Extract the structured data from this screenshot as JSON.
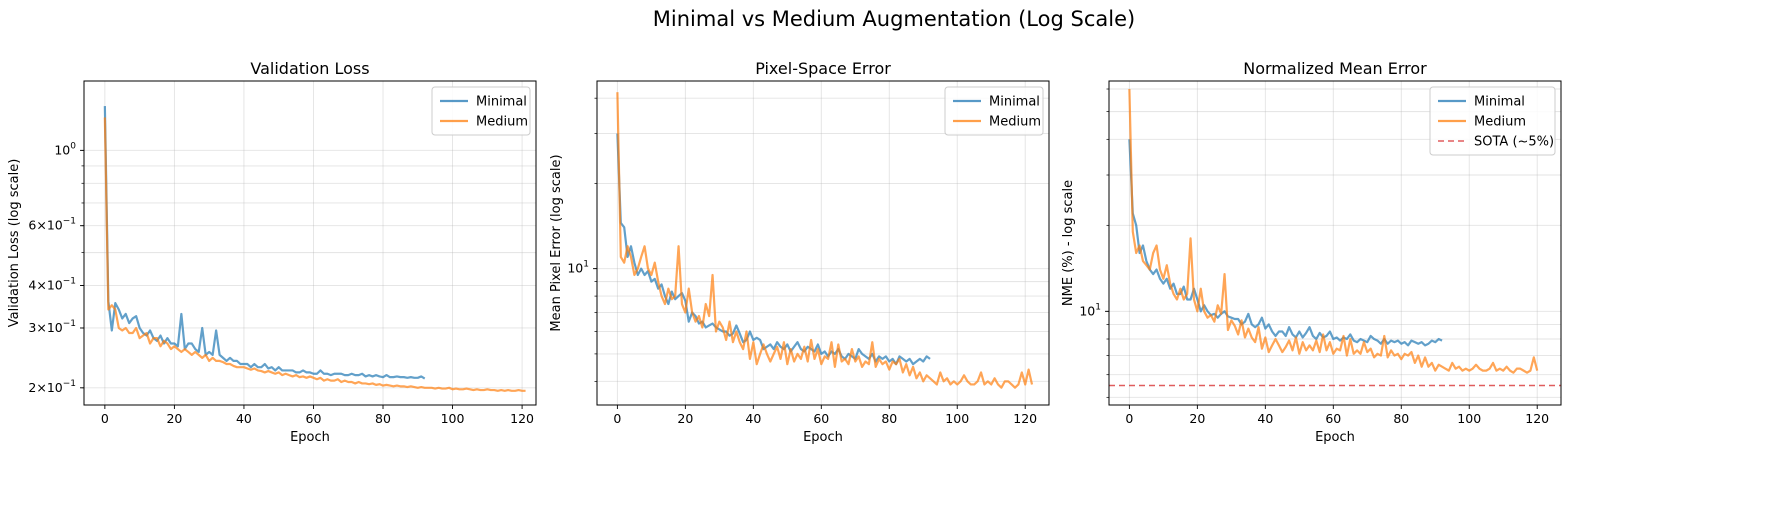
{
  "figure_title": "Minimal vs Medium Augmentation (Log Scale)",
  "colors": {
    "minimal": "#1f77b4",
    "medium": "#ff7f0e",
    "sota": "#d62728"
  },
  "chart_data": [
    {
      "type": "line",
      "title": "Validation Loss",
      "xlabel": "Epoch",
      "ylabel": "Validation Loss (log scale)",
      "yscale": "log",
      "xlim": [
        -6,
        124
      ],
      "ylim": [
        0.178,
        1.6
      ],
      "xticks": [
        0,
        20,
        40,
        60,
        80,
        100,
        120
      ],
      "yticks": [
        {
          "value": 0.2,
          "m": "2",
          "e": "-1"
        },
        {
          "value": 0.3,
          "m": "3",
          "e": "-1"
        },
        {
          "value": 0.4,
          "m": "4",
          "e": "-1"
        },
        {
          "value": 0.6,
          "m": "6",
          "e": "-1"
        },
        {
          "value": 1.0,
          "m": "",
          "e": "0"
        }
      ],
      "grid": true,
      "legend": "top-right",
      "legend_entries": [
        "Minimal",
        "Medium"
      ],
      "series": [
        {
          "name": "Minimal",
          "color": "minimal",
          "x_start": 0,
          "values": [
            1.35,
            0.36,
            0.295,
            0.355,
            0.34,
            0.32,
            0.33,
            0.31,
            0.32,
            0.325,
            0.3,
            0.29,
            0.285,
            0.295,
            0.28,
            0.275,
            0.285,
            0.27,
            0.28,
            0.27,
            0.27,
            0.265,
            0.33,
            0.26,
            0.27,
            0.27,
            0.26,
            0.255,
            0.3,
            0.25,
            0.255,
            0.25,
            0.295,
            0.25,
            0.245,
            0.24,
            0.245,
            0.24,
            0.24,
            0.235,
            0.235,
            0.235,
            0.23,
            0.235,
            0.23,
            0.23,
            0.235,
            0.228,
            0.23,
            0.225,
            0.23,
            0.225,
            0.225,
            0.225,
            0.225,
            0.222,
            0.222,
            0.225,
            0.222,
            0.222,
            0.22,
            0.22,
            0.225,
            0.22,
            0.22,
            0.218,
            0.22,
            0.22,
            0.22,
            0.218,
            0.218,
            0.22,
            0.218,
            0.218,
            0.22,
            0.216,
            0.218,
            0.216,
            0.218,
            0.216,
            0.215,
            0.218,
            0.215,
            0.215,
            0.216,
            0.215,
            0.215,
            0.214,
            0.215,
            0.214,
            0.214,
            0.216,
            0.213
          ]
        },
        {
          "name": "Medium",
          "color": "medium",
          "x_start": 0,
          "values": [
            1.25,
            0.34,
            0.35,
            0.34,
            0.3,
            0.295,
            0.3,
            0.29,
            0.29,
            0.3,
            0.28,
            0.285,
            0.29,
            0.27,
            0.28,
            0.28,
            0.265,
            0.275,
            0.27,
            0.26,
            0.265,
            0.26,
            0.255,
            0.26,
            0.255,
            0.25,
            0.255,
            0.25,
            0.245,
            0.25,
            0.24,
            0.245,
            0.24,
            0.24,
            0.238,
            0.235,
            0.235,
            0.232,
            0.23,
            0.23,
            0.23,
            0.228,
            0.226,
            0.228,
            0.225,
            0.224,
            0.222,
            0.224,
            0.222,
            0.22,
            0.222,
            0.218,
            0.22,
            0.218,
            0.216,
            0.218,
            0.215,
            0.216,
            0.214,
            0.216,
            0.214,
            0.212,
            0.214,
            0.21,
            0.212,
            0.21,
            0.21,
            0.212,
            0.208,
            0.21,
            0.208,
            0.208,
            0.206,
            0.208,
            0.206,
            0.206,
            0.205,
            0.206,
            0.204,
            0.205,
            0.203,
            0.204,
            0.203,
            0.202,
            0.203,
            0.202,
            0.202,
            0.201,
            0.202,
            0.201,
            0.2,
            0.201,
            0.2,
            0.2,
            0.2,
            0.199,
            0.2,
            0.199,
            0.199,
            0.2,
            0.198,
            0.199,
            0.198,
            0.198,
            0.199,
            0.198,
            0.197,
            0.198,
            0.197,
            0.197,
            0.198,
            0.197,
            0.197,
            0.196,
            0.197,
            0.196,
            0.197,
            0.196,
            0.196,
            0.197,
            0.196,
            0.196
          ]
        }
      ]
    },
    {
      "type": "line",
      "title": "Pixel-Space Error",
      "xlabel": "Epoch",
      "ylabel": "Mean Pixel Error (log scale)",
      "yscale": "log",
      "xlim": [
        -6,
        127
      ],
      "ylim": [
        3.3,
        46
      ],
      "xticks": [
        0,
        20,
        40,
        60,
        80,
        100,
        120
      ],
      "yticks": [
        {
          "value": 10,
          "m": "",
          "e": "1"
        }
      ],
      "grid": true,
      "legend": "top-right",
      "legend_entries": [
        "Minimal",
        "Medium"
      ],
      "series": [
        {
          "name": "Minimal",
          "color": "minimal",
          "x_start": 0,
          "values": [
            30,
            14.5,
            14,
            11,
            12,
            10.5,
            9.5,
            10,
            9.5,
            9.8,
            9,
            9.2,
            8.5,
            8.8,
            8,
            7.5,
            8.3,
            7.8,
            8,
            8.2,
            7.7,
            6.5,
            7,
            6.8,
            6.4,
            6.5,
            6.2,
            6.3,
            6.4,
            6.2,
            6.1,
            6,
            6,
            5.8,
            5.9,
            6.3,
            5.9,
            5.5,
            5.6,
            6,
            5.6,
            5.7,
            5.6,
            5.2,
            5.3,
            5.4,
            5.2,
            5.5,
            5.3,
            5.2,
            5.4,
            5.1,
            5.3,
            5.5,
            5.2,
            5.1,
            5.3,
            5.2,
            5.1,
            5.4,
            5,
            5.1,
            4.9,
            5.1,
            5,
            5.2,
            4.9,
            4.8,
            5,
            4.9,
            4.8,
            5.2,
            5,
            4.9,
            4.8,
            5,
            4.7,
            4.9,
            4.8,
            4.9,
            4.7,
            4.8,
            4.6,
            4.9,
            4.8,
            4.7,
            4.8,
            4.6,
            4.7,
            4.8,
            4.7,
            4.9,
            4.8
          ]
        },
        {
          "name": "Medium",
          "color": "medium",
          "x_start": 0,
          "values": [
            42,
            11,
            10.5,
            12,
            11,
            9.5,
            10,
            11,
            12,
            10,
            9.5,
            10.5,
            9,
            8,
            7.5,
            8.5,
            7.8,
            8,
            12,
            7.5,
            7,
            8.5,
            7,
            6.5,
            6.8,
            6.2,
            7.5,
            6.8,
            9.5,
            6,
            6.5,
            6.2,
            5.6,
            6.5,
            5.5,
            6,
            5.5,
            5.2,
            6,
            4.8,
            5.5,
            4.6,
            5,
            5.4,
            5,
            4.7,
            5,
            5.3,
            4.8,
            5.5,
            4.6,
            5.2,
            4.7,
            5,
            4.8,
            5.3,
            4.7,
            5.6,
            4.8,
            5.2,
            4.6,
            4.9,
            4.8,
            5.5,
            4.5,
            5.4,
            4.7,
            4.8,
            4.6,
            5.2,
            4.7,
            4.9,
            4.5,
            4.7,
            4.6,
            5.5,
            4.5,
            4.8,
            4.6,
            4.7,
            4.4,
            4.7,
            4.6,
            4.8,
            4.3,
            4.6,
            4.2,
            4.5,
            4.1,
            4.3,
            4,
            4.2,
            4.1,
            4,
            3.9,
            4.3,
            4.0,
            4.1,
            3.9,
            4.0,
            3.9,
            4.0,
            4.2,
            4.0,
            3.9,
            3.9,
            4.0,
            4.3,
            3.9,
            4.0,
            3.9,
            4.1,
            3.9,
            3.8,
            4.0,
            4.0,
            3.9,
            3.8,
            3.9,
            4.3,
            3.9,
            4.4,
            3.9
          ]
        }
      ]
    },
    {
      "type": "line",
      "title": "Normalized Mean Error",
      "xlabel": "Epoch",
      "ylabel": "NME (%) - log scale",
      "yscale": "log",
      "xlim": [
        -6,
        127
      ],
      "ylim": [
        4.7,
        64
      ],
      "xticks": [
        0,
        20,
        40,
        60,
        80,
        100,
        120
      ],
      "yticks": [
        {
          "value": 10,
          "m": "",
          "e": "1"
        }
      ],
      "grid": true,
      "legend": "top-right",
      "legend_entries": [
        "Minimal",
        "Medium",
        "SOTA (~5%)"
      ],
      "reference_line": {
        "name": "SOTA (~5%)",
        "value": 5.5,
        "color": "sota",
        "style": "dashed"
      },
      "series": [
        {
          "name": "Minimal",
          "color": "minimal",
          "x_start": 0,
          "values": [
            40,
            22,
            20,
            16,
            17,
            15,
            14,
            13.5,
            14,
            13,
            12.5,
            13,
            12,
            12.5,
            11.5,
            11.5,
            12.2,
            11,
            11,
            12,
            11,
            10,
            10.5,
            10,
            9.7,
            9.8,
            9.5,
            9.8,
            10,
            9.6,
            9.5,
            9.4,
            9.4,
            9,
            9.2,
            9.8,
            9,
            8.8,
            9,
            9.5,
            8.7,
            9,
            8.5,
            8.2,
            8.5,
            8.5,
            8.2,
            8.8,
            8.3,
            8.1,
            8.5,
            8.1,
            8.4,
            8.8,
            8.2,
            8,
            8.4,
            8.1,
            8.2,
            8.5,
            8,
            8.1,
            7.9,
            8.1,
            8,
            8.3,
            7.9,
            7.8,
            8,
            7.9,
            7.8,
            8.2,
            8,
            7.9,
            7.7,
            8,
            7.7,
            7.9,
            7.8,
            7.9,
            7.7,
            7.8,
            7.6,
            7.9,
            7.8,
            7.7,
            7.8,
            7.6,
            7.7,
            7.9,
            7.8,
            8,
            7.9
          ]
        },
        {
          "name": "Medium",
          "color": "medium",
          "x_start": 0,
          "values": [
            60,
            19,
            16,
            17,
            15,
            14.5,
            14,
            16,
            17,
            14,
            13,
            14.5,
            12.5,
            11.5,
            11,
            12,
            11,
            11.5,
            18,
            11,
            10,
            12,
            10,
            9.5,
            9.7,
            9.2,
            10.5,
            9.8,
            13.5,
            8.6,
            9.3,
            8.9,
            8.3,
            9.3,
            8.1,
            8.7,
            8.1,
            7.8,
            8.8,
            7.4,
            8.1,
            7.2,
            7.6,
            8,
            7.6,
            7.2,
            7.5,
            7.9,
            7.3,
            8.1,
            7.1,
            7.8,
            7.3,
            7.6,
            7.3,
            7.9,
            7.2,
            8.3,
            7.3,
            7.8,
            7.1,
            7.4,
            7.3,
            8.2,
            7,
            8,
            7.1,
            7.3,
            7.1,
            7.8,
            7.2,
            7.4,
            6.9,
            7.1,
            7,
            8.2,
            6.9,
            7.3,
            7,
            7.1,
            6.8,
            7.1,
            7,
            7.2,
            6.6,
            7,
            6.4,
            6.9,
            6.4,
            6.6,
            6.2,
            6.5,
            6.4,
            6.3,
            6.2,
            6.6,
            6.3,
            6.4,
            6.2,
            6.3,
            6.2,
            6.3,
            6.5,
            6.3,
            6.2,
            6.2,
            6.3,
            6.6,
            6.2,
            6.3,
            6.2,
            6.4,
            6.2,
            6.1,
            6.3,
            6.3,
            6.2,
            6.1,
            6.2,
            6.9,
            6.2
          ]
        }
      ]
    }
  ]
}
